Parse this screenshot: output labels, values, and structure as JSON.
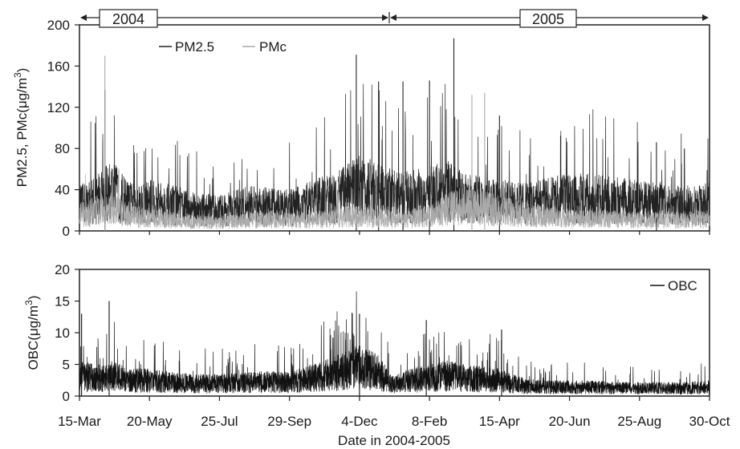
{
  "chart_data": [
    {
      "type": "line",
      "panel": "top",
      "ylabel": "PM2.5, PMc(μg/m3)",
      "ylim": [
        0,
        200
      ],
      "yticks": [
        0,
        40,
        80,
        120,
        160,
        200
      ],
      "legend": {
        "placement": "top-left",
        "entries": [
          "PM2.5",
          "PMc"
        ]
      },
      "year_labels": [
        "2004",
        "2005"
      ],
      "series": [
        {
          "name": "PM2.5",
          "color": "#222222",
          "x": [
            "2004-03-15",
            "2004-04-01",
            "2004-04-15",
            "2004-05-01",
            "2004-05-20",
            "2004-06-15",
            "2004-07-01",
            "2004-07-25",
            "2004-08-20",
            "2004-09-10",
            "2004-09-29",
            "2004-10-20",
            "2004-11-10",
            "2004-12-04",
            "2004-12-20",
            "2005-01-10",
            "2005-02-08",
            "2005-02-25",
            "2005-03-15",
            "2005-04-15",
            "2005-05-10",
            "2005-06-01",
            "2005-06-20",
            "2005-07-10",
            "2005-07-30",
            "2005-08-25",
            "2005-09-15",
            "2005-10-05",
            "2005-10-30"
          ],
          "values": [
            35,
            45,
            55,
            38,
            40,
            35,
            30,
            28,
            35,
            35,
            32,
            40,
            45,
            60,
            55,
            45,
            50,
            55,
            45,
            40,
            38,
            42,
            45,
            45,
            42,
            40,
            38,
            35,
            38
          ],
          "peaks": [
            {
              "x": "2004-04-08",
              "y": 137
            },
            {
              "x": "2004-12-01",
              "y": 171
            },
            {
              "x": "2004-12-22",
              "y": 145
            },
            {
              "x": "2005-01-14",
              "y": 145
            },
            {
              "x": "2005-02-08",
              "y": 146
            },
            {
              "x": "2005-03-03",
              "y": 187
            },
            {
              "x": "2005-04-15",
              "y": 112
            },
            {
              "x": "2005-09-10",
              "y": 86
            }
          ]
        },
        {
          "name": "PMc",
          "color": "#aaaaaa",
          "x": [
            "2004-03-15",
            "2004-04-01",
            "2004-04-15",
            "2004-05-01",
            "2004-05-20",
            "2004-06-15",
            "2004-07-01",
            "2004-07-25",
            "2004-08-20",
            "2004-09-10",
            "2004-09-29",
            "2004-10-20",
            "2004-11-10",
            "2004-12-04",
            "2004-12-20",
            "2005-01-10",
            "2005-02-08",
            "2005-02-25",
            "2005-03-15",
            "2005-04-15",
            "2005-05-10",
            "2005-06-01",
            "2005-06-20",
            "2005-07-10",
            "2005-07-30",
            "2005-08-25",
            "2005-09-15",
            "2005-10-05",
            "2005-10-30"
          ],
          "values": [
            22,
            28,
            30,
            20,
            18,
            14,
            12,
            12,
            14,
            16,
            14,
            15,
            18,
            20,
            18,
            15,
            20,
            30,
            35,
            28,
            22,
            20,
            18,
            16,
            16,
            15,
            15,
            15,
            16
          ],
          "peaks": [
            {
              "x": "2004-04-08",
              "y": 170
            },
            {
              "x": "2005-03-20",
              "y": 132
            },
            {
              "x": "2005-04-01",
              "y": 134
            }
          ]
        }
      ]
    },
    {
      "type": "line",
      "panel": "bottom",
      "ylabel": "OBC(μg/m3)",
      "xlabel": "Date in 2004-2005",
      "ylim": [
        0,
        20
      ],
      "yticks": [
        0,
        5,
        10,
        15,
        20
      ],
      "xticks": [
        "15-Mar",
        "20-May",
        "25-Jul",
        "29-Sep",
        "4-Dec",
        "8-Feb",
        "15-Apr",
        "20-Jun",
        "25-Aug",
        "30-Oct"
      ],
      "legend": {
        "placement": "top-right",
        "entries": [
          "OBC"
        ]
      },
      "series": [
        {
          "name": "OBC",
          "color": "#111111",
          "x": [
            "2004-03-15",
            "2004-04-01",
            "2004-04-15",
            "2004-05-01",
            "2004-05-20",
            "2004-06-15",
            "2004-07-01",
            "2004-07-25",
            "2004-08-20",
            "2004-09-10",
            "2004-09-29",
            "2004-10-20",
            "2004-11-10",
            "2004-11-25",
            "2004-12-04",
            "2004-12-20",
            "2005-01-05",
            "2005-01-20",
            "2005-02-08",
            "2005-02-25",
            "2005-03-15",
            "2005-04-15",
            "2005-05-10",
            "2005-06-01",
            "2005-06-20",
            "2005-07-10",
            "2005-07-30",
            "2005-08-25",
            "2005-09-15",
            "2005-10-05",
            "2005-10-30"
          ],
          "values": [
            4.5,
            4.0,
            4.5,
            3.5,
            3.5,
            3.0,
            2.8,
            2.8,
            3.0,
            3.2,
            3.0,
            4.0,
            5.0,
            6.0,
            6.5,
            5.5,
            2.5,
            3.5,
            4.0,
            4.5,
            4.0,
            3.5,
            2.2,
            2.0,
            2.0,
            2.0,
            1.8,
            1.8,
            1.8,
            1.8,
            2.0
          ],
          "peaks": [
            {
              "x": "2004-03-17",
              "y": 13
            },
            {
              "x": "2004-04-12",
              "y": 15
            },
            {
              "x": "2004-12-04",
              "y": 13
            },
            {
              "x": "2005-02-05",
              "y": 12
            },
            {
              "x": "2005-04-17",
              "y": 10.5
            }
          ]
        }
      ]
    }
  ]
}
